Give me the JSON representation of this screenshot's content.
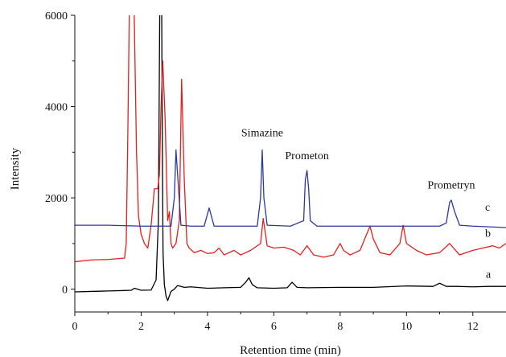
{
  "chart_data": {
    "type": "line",
    "xlabel": "Retention time (min)",
    "ylabel": "Intensity",
    "xlim": [
      0,
      13
    ],
    "ylim": [
      -500,
      6000
    ],
    "xticks": [
      0,
      2,
      4,
      6,
      8,
      10,
      12
    ],
    "yticks": [
      0,
      2000,
      4000,
      6000
    ],
    "grid": false,
    "series": [
      {
        "name": "a",
        "color": "#000000",
        "x": [
          0,
          0.5,
          1.0,
          1.5,
          1.7,
          1.8,
          2.0,
          2.3,
          2.45,
          2.52,
          2.56,
          2.58,
          2.6,
          2.62,
          2.64,
          2.66,
          2.7,
          2.75,
          2.8,
          2.85,
          2.9,
          3.0,
          3.1,
          3.3,
          3.5,
          4.0,
          4.5,
          5.0,
          5.15,
          5.25,
          5.35,
          5.5,
          6.0,
          6.4,
          6.55,
          6.7,
          7.0,
          8.0,
          9.0,
          10.0,
          10.8,
          11.0,
          11.2,
          11.5,
          12.0,
          12.5,
          13.0
        ],
        "y": [
          -60,
          -50,
          -40,
          -30,
          -25,
          20,
          -25,
          -20,
          200,
          1500,
          6000,
          6800,
          6800,
          6000,
          3000,
          800,
          100,
          -150,
          -250,
          -150,
          -50,
          0,
          80,
          40,
          50,
          20,
          30,
          40,
          150,
          250,
          100,
          30,
          20,
          30,
          150,
          40,
          30,
          40,
          40,
          70,
          60,
          130,
          60,
          60,
          50,
          60,
          60
        ],
        "label": "a"
      },
      {
        "name": "b",
        "color": "#e02020",
        "x": [
          0,
          0.5,
          1.0,
          1.5,
          1.55,
          1.6,
          1.65,
          1.7,
          1.78,
          1.86,
          1.92,
          2.0,
          2.1,
          2.2,
          2.3,
          2.4,
          2.5,
          2.55,
          2.6,
          2.65,
          2.72,
          2.8,
          2.85,
          2.9,
          2.95,
          3.05,
          3.15,
          3.22,
          3.3,
          3.38,
          3.45,
          3.6,
          3.8,
          4.0,
          4.2,
          4.35,
          4.5,
          4.8,
          5.0,
          5.3,
          5.6,
          5.68,
          5.8,
          6.0,
          6.3,
          6.6,
          6.8,
          7.0,
          7.2,
          7.5,
          7.8,
          8.0,
          8.1,
          8.3,
          8.6,
          8.9,
          9.0,
          9.2,
          9.5,
          9.8,
          9.9,
          10.0,
          10.3,
          10.6,
          11.0,
          11.3,
          11.6,
          12.0,
          12.3,
          12.6,
          12.8,
          13.0
        ],
        "y": [
          600,
          640,
          650,
          680,
          1000,
          3500,
          6500,
          7000,
          6500,
          3000,
          1600,
          1200,
          1000,
          900,
          1400,
          2200,
          2200,
          2500,
          4000,
          5000,
          3800,
          1500,
          1700,
          1000,
          900,
          1000,
          1500,
          4600,
          2400,
          1000,
          900,
          800,
          850,
          780,
          800,
          900,
          750,
          850,
          750,
          850,
          1000,
          1550,
          950,
          900,
          920,
          850,
          750,
          950,
          750,
          700,
          750,
          1000,
          850,
          750,
          850,
          1380,
          1100,
          800,
          750,
          1000,
          1400,
          1000,
          850,
          750,
          800,
          1000,
          750,
          850,
          900,
          950,
          900,
          1000
        ],
        "label": "b"
      },
      {
        "name": "c",
        "color": "#2b3a9a",
        "x": [
          0,
          1.0,
          2.0,
          2.5,
          2.9,
          3.0,
          3.05,
          3.1,
          3.2,
          3.5,
          3.9,
          4.05,
          4.2,
          5.0,
          5.5,
          5.6,
          5.65,
          5.7,
          5.8,
          6.5,
          6.9,
          6.95,
          7.0,
          7.05,
          7.1,
          7.3,
          8.0,
          9.0,
          10.0,
          11.0,
          11.2,
          11.3,
          11.35,
          11.45,
          11.6,
          12.0,
          13.0
        ],
        "y": [
          1400,
          1400,
          1380,
          1380,
          1380,
          2000,
          3050,
          2500,
          1400,
          1380,
          1380,
          1780,
          1380,
          1380,
          1380,
          2000,
          3050,
          2000,
          1400,
          1380,
          1500,
          2400,
          2600,
          2200,
          1500,
          1380,
          1380,
          1380,
          1380,
          1380,
          1450,
          1900,
          1950,
          1700,
          1400,
          1380,
          1350
        ],
        "label": "c"
      }
    ],
    "annotations": [
      {
        "text": "Simazine",
        "x": 5.65,
        "y": 3350
      },
      {
        "text": "Prometon",
        "x": 7.0,
        "y": 2850
      },
      {
        "text": "Prometryn",
        "x": 11.35,
        "y": 2200
      }
    ]
  }
}
